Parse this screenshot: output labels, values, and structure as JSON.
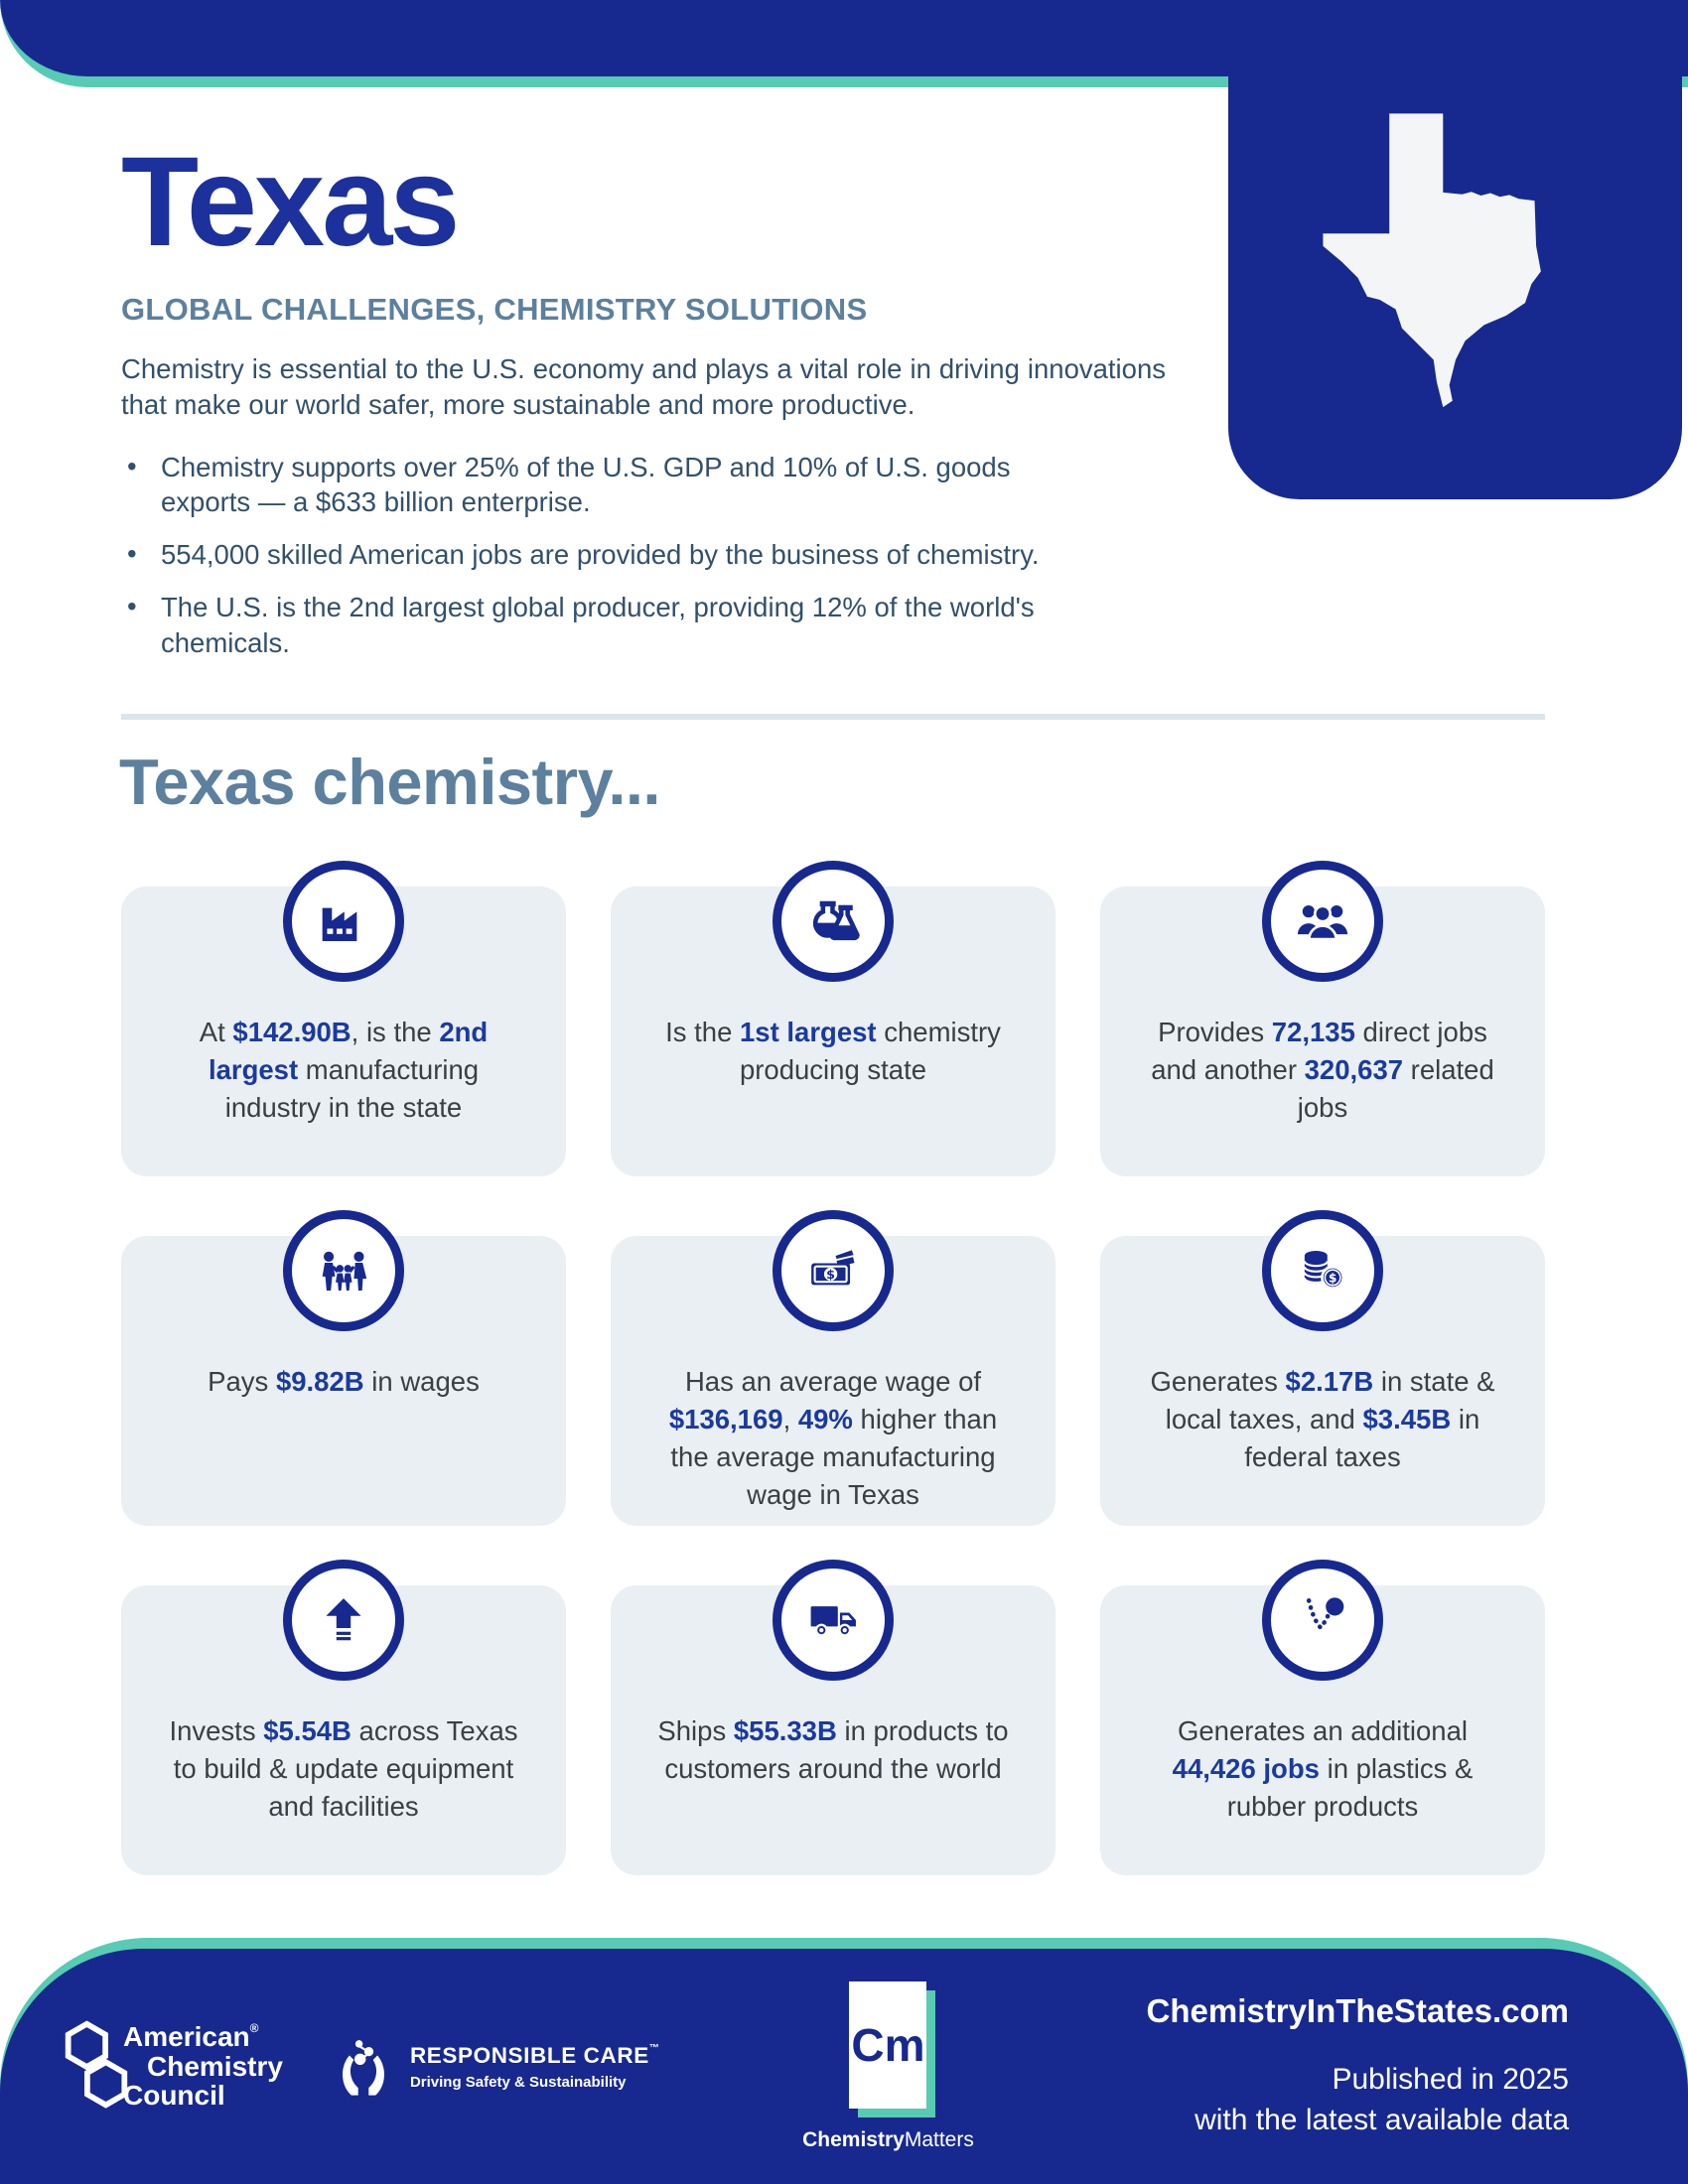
{
  "colors": {
    "navy": "#17298f",
    "teal": "#58cbb4",
    "slate": "#5c809e",
    "body_text": "#33506b",
    "card_bg": "#e9eff2",
    "accent": "#1b3a9e"
  },
  "header": {
    "title": "Texas",
    "subtitle": "GLOBAL CHALLENGES, CHEMISTRY SOLUTIONS",
    "intro": "Chemistry is essential to the U.S. economy and plays a vital role in driving innovations that make our world safer, more sustainable and more productive.",
    "bullets": [
      "Chemistry supports over 25% of the U.S. GDP and 10% of U.S. goods exports — a $633 billion enterprise.",
      "554,000 skilled American jobs are provided by the business of chemistry.",
      "The U.S. is the 2nd largest global producer, providing 12% of the world's chemicals."
    ],
    "state_map": "texas-map"
  },
  "section_heading": "Texas chemistry...",
  "cards": [
    {
      "icon": "factory-icon",
      "parts": [
        [
          "At ",
          false
        ],
        [
          "$142.90B",
          true
        ],
        [
          ", is the ",
          false
        ],
        [
          "2nd largest",
          true
        ],
        [
          " manufacturing industry in the state",
          false
        ]
      ]
    },
    {
      "icon": "flasks-icon",
      "parts": [
        [
          "Is the ",
          false
        ],
        [
          "1st largest",
          true
        ],
        [
          " chemistry producing state",
          false
        ]
      ]
    },
    {
      "icon": "people-icon",
      "parts": [
        [
          "Provides ",
          false
        ],
        [
          "72,135",
          true
        ],
        [
          " direct jobs and another ",
          false
        ],
        [
          "320,637",
          true
        ],
        [
          " related jobs",
          false
        ]
      ]
    },
    {
      "icon": "family-icon",
      "parts": [
        [
          "Pays ",
          false
        ],
        [
          "$9.82B",
          true
        ],
        [
          " in wages",
          false
        ]
      ]
    },
    {
      "icon": "money-icon",
      "parts": [
        [
          "Has an average wage of ",
          false
        ],
        [
          "$136,169",
          true
        ],
        [
          ", ",
          false
        ],
        [
          "49%",
          true
        ],
        [
          " higher than the average manufacturing wage in Texas",
          false
        ]
      ]
    },
    {
      "icon": "coins-icon",
      "parts": [
        [
          "Generates ",
          false
        ],
        [
          "$2.17B",
          true
        ],
        [
          " in state & local taxes, and ",
          false
        ],
        [
          "$3.45B",
          true
        ],
        [
          " in federal taxes",
          false
        ]
      ]
    },
    {
      "icon": "up-arrow-icon",
      "parts": [
        [
          "Invests ",
          false
        ],
        [
          "$5.54B",
          true
        ],
        [
          " across Texas to build & update equipment and facilities",
          false
        ]
      ]
    },
    {
      "icon": "truck-icon",
      "parts": [
        [
          "Ships ",
          false
        ],
        [
          "$55.33B",
          true
        ],
        [
          " in products to customers around the world",
          false
        ]
      ]
    },
    {
      "icon": "bouncing-ball-icon",
      "parts": [
        [
          "Generates an additional ",
          false
        ],
        [
          "44,426 jobs",
          true
        ],
        [
          " in plastics & rubber products",
          false
        ]
      ]
    }
  ],
  "footer": {
    "acc_line1": "American",
    "acc_registered": "®",
    "acc_line2": "Chemistry",
    "acc_line3": "Council",
    "responsible_care": "RESPONSIBLE CARE",
    "responsible_care_tm": "™",
    "responsible_care_tagline": "Driving Safety & Sustainability",
    "cm_symbol": "Cm",
    "cm_brand_bold": "Chemistry",
    "cm_brand_regular": "Matters",
    "website": "ChemistryInTheStates.com",
    "published_line1": "Published in 2025",
    "published_line2": "with the latest available data"
  }
}
